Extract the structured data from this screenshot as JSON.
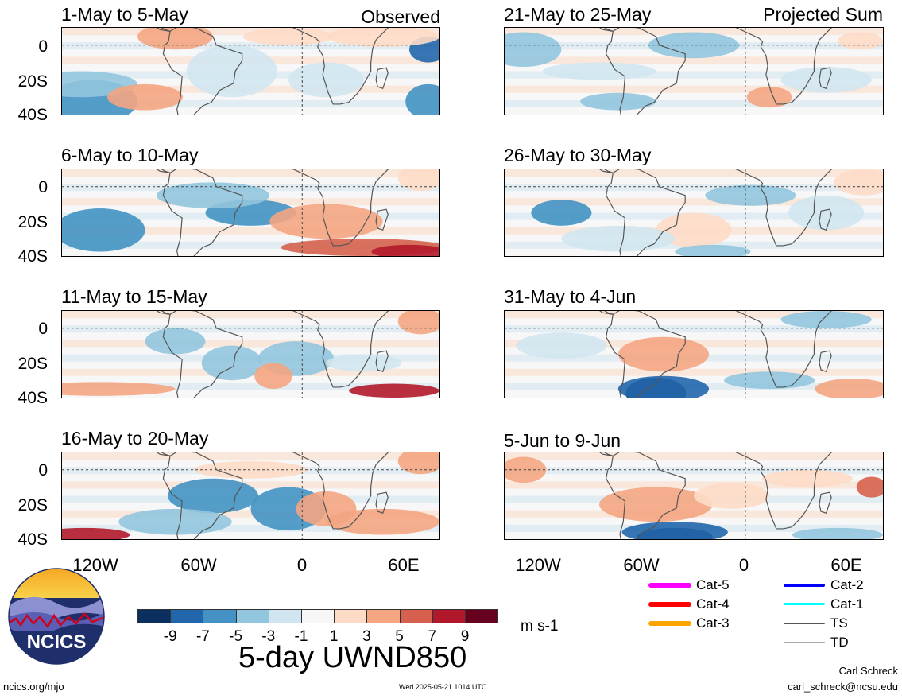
{
  "panels": [
    {
      "id": "p1",
      "title": "1-May to 5-May",
      "label": "Observed"
    },
    {
      "id": "p2",
      "title": "6-May to 10-May",
      "label": ""
    },
    {
      "id": "p3",
      "title": "11-May to 15-May",
      "label": ""
    },
    {
      "id": "p4",
      "title": "16-May to 20-May",
      "label": ""
    },
    {
      "id": "p5",
      "title": "21-May to 25-May",
      "label": "Projected Sum"
    },
    {
      "id": "p6",
      "title": "26-May to 30-May",
      "label": ""
    },
    {
      "id": "p7",
      "title": "31-May to 4-Jun",
      "label": ""
    },
    {
      "id": "p8",
      "title": "5-Jun to 9-Jun",
      "label": ""
    }
  ],
  "y_ticks": [
    "0",
    "20S",
    "40S"
  ],
  "x_ticks": [
    "120W",
    "60W",
    "0",
    "60E"
  ],
  "colorbar": {
    "colors": [
      "#0b2f5e",
      "#2266ac",
      "#4392c3",
      "#92c5de",
      "#d1e5f0",
      "#f7f7f7",
      "#fddbc7",
      "#f4a582",
      "#d6604d",
      "#b2182b",
      "#67001f"
    ],
    "labels": [
      "-9",
      "-7",
      "-5",
      "-3",
      "-1",
      "1",
      "3",
      "5",
      "7",
      "9"
    ],
    "units": "m s-1"
  },
  "main_title": "5-day UWND850",
  "legend": [
    {
      "label": "Cat-5",
      "color": "#ff00ff"
    },
    {
      "label": "Cat-4",
      "color": "#ff0000"
    },
    {
      "label": "Cat-3",
      "color": "#ffa500"
    },
    {
      "label": "Cat-2",
      "color": "#0000ff"
    },
    {
      "label": "Cat-1",
      "color": "#00ffff"
    },
    {
      "label": "TS",
      "color": "#555555"
    },
    {
      "label": "TD",
      "color": "#aaaaaa"
    }
  ],
  "logo_text": "NCICS",
  "footer": {
    "url": "ncics.org/mjo",
    "timestamp": "Wed 2025-05-21 1014 UTC",
    "author": "Carl Schreck",
    "email": "carl_schreck@ncsu.edu"
  }
}
